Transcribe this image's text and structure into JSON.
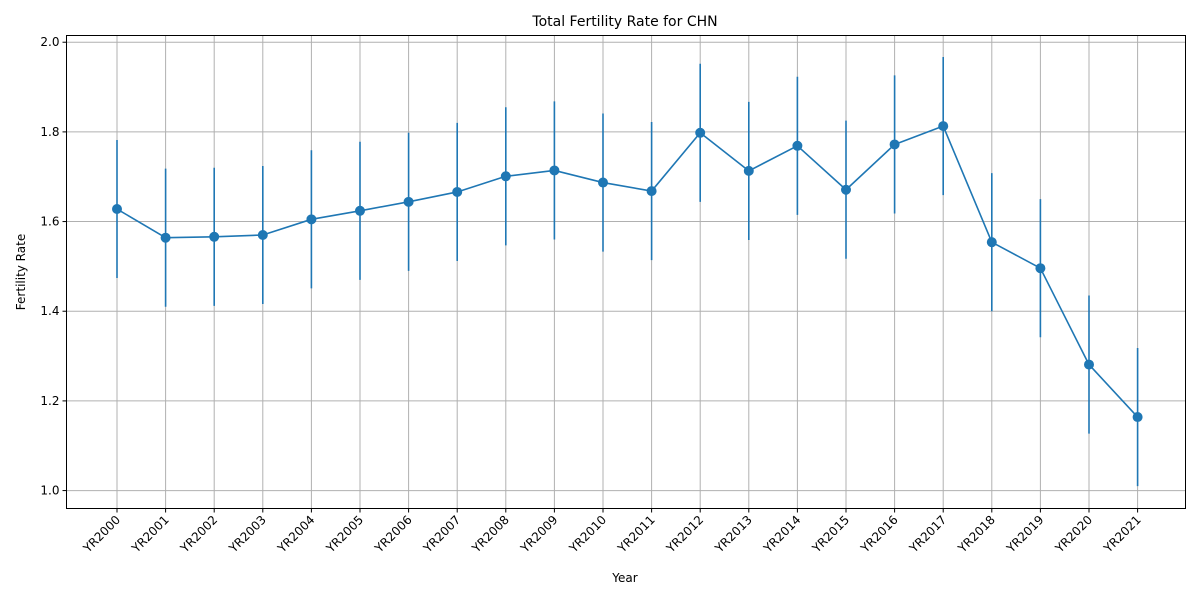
{
  "chart_data": {
    "type": "line",
    "title": "Total Fertility Rate for CHN",
    "xlabel": "Year",
    "ylabel": "Fertility Rate",
    "categories": [
      "YR2000",
      "YR2001",
      "YR2002",
      "YR2003",
      "YR2004",
      "YR2005",
      "YR2006",
      "YR2007",
      "YR2008",
      "YR2009",
      "YR2010",
      "YR2011",
      "YR2012",
      "YR2013",
      "YR2014",
      "YR2015",
      "YR2016",
      "YR2017",
      "YR2018",
      "YR2019",
      "YR2020",
      "YR2021"
    ],
    "series": [
      {
        "values": [
          1.628,
          1.564,
          1.566,
          1.57,
          1.605,
          1.624,
          1.644,
          1.666,
          1.701,
          1.714,
          1.687,
          1.668,
          1.798,
          1.713,
          1.769,
          1.671,
          1.772,
          1.813,
          1.554,
          1.496,
          1.281,
          1.164
        ],
        "error": 0.154,
        "color": "#1f77b4"
      }
    ],
    "ylim": [
      0.96,
      2.015
    ],
    "yticks": [
      "1.0",
      "1.2",
      "1.4",
      "1.6",
      "1.8",
      "2.0"
    ],
    "ytick_values": [
      1.0,
      1.2,
      1.4,
      1.6,
      1.8,
      2.0
    ],
    "grid": true,
    "legend": "none"
  }
}
